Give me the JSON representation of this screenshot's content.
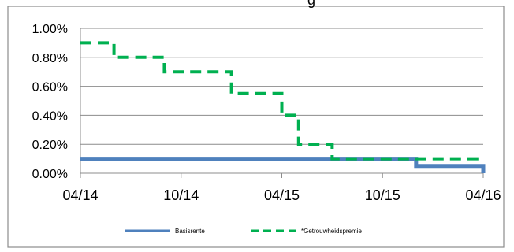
{
  "title_fragment": "g",
  "chart_data": {
    "type": "line",
    "x_ticks": [
      "04/14",
      "10/14",
      "04/15",
      "10/15",
      "04/16"
    ],
    "y_ticks": [
      "0.00%",
      "0.20%",
      "0.40%",
      "0.60%",
      "0.80%",
      "1.00%"
    ],
    "ylim": [
      0,
      1.0
    ],
    "xlim": [
      "2014-04",
      "2016-04"
    ],
    "grid": true,
    "legend_position": "bottom",
    "series": [
      {
        "name": "Basisrente",
        "color": "#4F81BD",
        "style": "solid",
        "points": [
          {
            "x": "2014-04",
            "y": 0.1
          },
          {
            "x": "2015-12",
            "y": 0.1
          },
          {
            "x": "2015-12",
            "y": 0.05
          },
          {
            "x": "2016-04",
            "y": 0.05
          },
          {
            "x": "2016-04",
            "y": 0.0
          }
        ]
      },
      {
        "name": "*Getrouwheidspremie",
        "color": "#00B050",
        "style": "dashed",
        "points": [
          {
            "x": "2014-04",
            "y": 0.9
          },
          {
            "x": "2014-06",
            "y": 0.9
          },
          {
            "x": "2014-06",
            "y": 0.8
          },
          {
            "x": "2014-09",
            "y": 0.8
          },
          {
            "x": "2014-09",
            "y": 0.7
          },
          {
            "x": "2015-01",
            "y": 0.7
          },
          {
            "x": "2015-01",
            "y": 0.55
          },
          {
            "x": "2015-04",
            "y": 0.55
          },
          {
            "x": "2015-04",
            "y": 0.4
          },
          {
            "x": "2015-05",
            "y": 0.4
          },
          {
            "x": "2015-05",
            "y": 0.2
          },
          {
            "x": "2015-07",
            "y": 0.2
          },
          {
            "x": "2015-07",
            "y": 0.1
          },
          {
            "x": "2016-04",
            "y": 0.1
          }
        ]
      }
    ]
  }
}
